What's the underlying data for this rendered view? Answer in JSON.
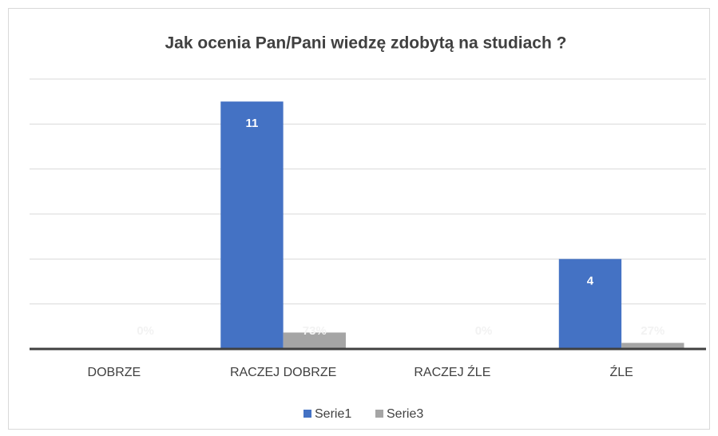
{
  "chart_data": {
    "type": "bar",
    "title": "Jak ocenia Pan/Pani wiedzę zdobytą na studiach ?",
    "categories": [
      "DOBRZE",
      "RACZEJ DOBRZE",
      "RACZEJ ŹLE",
      "ŹLE"
    ],
    "series": [
      {
        "name": "Serie1",
        "color": "#4472c4",
        "values": [
          0,
          11,
          0,
          4
        ]
      },
      {
        "name": "Serie3",
        "color": "#a5a5a5",
        "values": [
          0,
          0.73,
          0,
          0.27
        ],
        "value_labels": [
          "0%",
          "73%",
          "0%",
          "27%"
        ]
      }
    ],
    "ylim": [
      0,
      12
    ],
    "yticks": [
      0,
      2,
      4,
      6,
      8,
      10,
      12
    ],
    "grid": true,
    "legend": "bottom"
  }
}
